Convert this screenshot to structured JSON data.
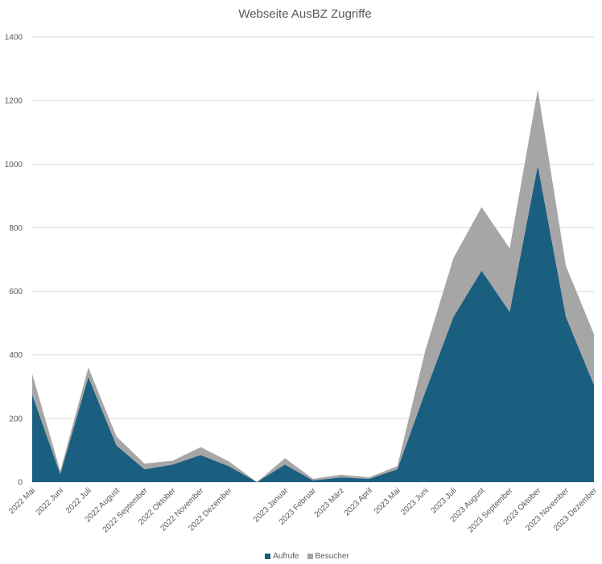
{
  "chart_data": {
    "type": "area",
    "stacked": true,
    "title": "Webseite AusBZ  Zugriffe",
    "xlabel": "",
    "ylabel": "",
    "ylim": [
      0,
      1400
    ],
    "yticks": [
      0,
      200,
      400,
      600,
      800,
      1000,
      1200,
      1400
    ],
    "grid": true,
    "legend_position": "bottom",
    "categories": [
      "2022 Mai",
      "2022 Juni",
      "2022 Juli",
      "2022 August",
      "2022 September",
      "2022 Oktober",
      "2022 November",
      "2022 Dezember",
      "",
      "2023 Januar",
      "2023 Februar",
      "2023 März",
      "2023 April",
      "2023 Mai",
      "2023 Juni",
      "2023 Juli",
      "2023 August",
      "2023 September",
      "2023 Oktober",
      "2023 November",
      "2023 Dezember"
    ],
    "series": [
      {
        "name": "Aufrufe",
        "color": "#1a5e80",
        "values": [
          275,
          25,
          330,
          115,
          40,
          55,
          85,
          50,
          0,
          55,
          5,
          15,
          10,
          40,
          285,
          520,
          665,
          535,
          995,
          520,
          305
        ]
      },
      {
        "name": "Besucher",
        "color": "#a6a6a6",
        "values": [
          65,
          10,
          30,
          28,
          18,
          12,
          25,
          15,
          0,
          20,
          5,
          8,
          5,
          10,
          130,
          185,
          200,
          200,
          240,
          160,
          160
        ]
      }
    ]
  }
}
